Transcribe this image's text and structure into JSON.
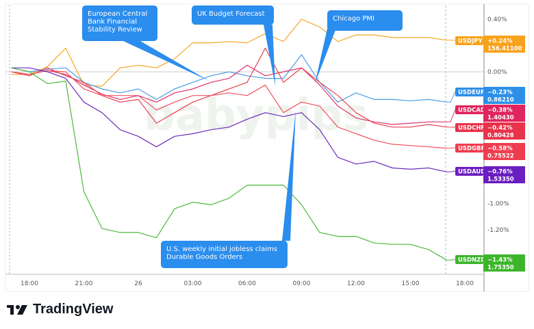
{
  "chart_data": {
    "type": "line",
    "x": [
      "17:00",
      "18:00",
      "19:00",
      "20:00",
      "21:00",
      "22:00",
      "23:00",
      "26",
      "01:00",
      "02:00",
      "03:00",
      "04:00",
      "05:00",
      "06:00",
      "07:00",
      "08:00",
      "09:00",
      "10:00",
      "11:00",
      "12:00",
      "13:00",
      "14:00",
      "15:00",
      "16:00",
      "17:00"
    ],
    "x_ticks": [
      "18:00",
      "21:00",
      "26",
      "03:00",
      "06:00",
      "09:00",
      "12:00",
      "15:00",
      "18:00"
    ],
    "y_ticks": [
      "0.40%",
      "0.00%",
      "-1.00%",
      "-1.20%"
    ],
    "y_unit": "%",
    "ylim": [
      -1.5,
      0.5
    ],
    "grid": false,
    "series": [
      {
        "name": "USDJPY",
        "color": "#f5a623",
        "tag_color": "#f7a21b",
        "change": "+0.24%",
        "price": "156.41100",
        "values": [
          -0.02,
          -0.02,
          0.04,
          0.18,
          -0.1,
          -0.11,
          0.03,
          0.05,
          0.03,
          0.1,
          0.22,
          0.22,
          0.23,
          0.22,
          0.29,
          0.23,
          0.4,
          0.34,
          0.23,
          0.28,
          0.28,
          0.26,
          0.26,
          0.26,
          0.24
        ]
      },
      {
        "name": "USDEUR",
        "color": "#4a9be8",
        "tag_color": "#2d8fe8",
        "change": "−0.23%",
        "price": "0.86210",
        "values": [
          0.03,
          0,
          0.02,
          0.03,
          -0.08,
          -0.13,
          -0.16,
          -0.13,
          -0.21,
          -0.13,
          -0.08,
          -0.03,
          0,
          -0.03,
          -0.05,
          -0.05,
          0.13,
          -0.08,
          -0.23,
          -0.16,
          -0.21,
          -0.21,
          -0.22,
          -0.21,
          -0.23
        ]
      },
      {
        "name": "USDCAD",
        "color": "#e0306a",
        "tag_color": "#e0245e",
        "change": "−0.38%",
        "price": "1.40430",
        "values": [
          0,
          -0.02,
          0.01,
          -0.02,
          -0.1,
          -0.17,
          -0.21,
          -0.18,
          -0.23,
          -0.16,
          -0.13,
          -0.08,
          -0.05,
          0.05,
          -0.03,
          0,
          0.03,
          -0.1,
          -0.26,
          -0.35,
          -0.38,
          -0.4,
          -0.39,
          -0.38,
          -0.38
        ]
      },
      {
        "name": "USDCHF",
        "color": "#e8404f",
        "tag_color": "#e8334a",
        "change": "−0.42%",
        "price": "0.80428",
        "values": [
          0,
          -0.03,
          0.03,
          -0.03,
          -0.08,
          -0.18,
          -0.23,
          -0.21,
          -0.39,
          -0.31,
          -0.23,
          -0.18,
          -0.13,
          -0.08,
          0.18,
          -0.08,
          0.03,
          -0.08,
          -0.18,
          -0.31,
          -0.39,
          -0.42,
          -0.42,
          -0.4,
          -0.42
        ]
      },
      {
        "name": "USDGBP",
        "color": "#f0505c",
        "tag_color": "#ef3d4f",
        "change": "−0.58%",
        "price": "0.75522",
        "values": [
          0,
          -0.02,
          0.01,
          0,
          -0.13,
          -0.18,
          -0.18,
          -0.18,
          -0.29,
          -0.23,
          -0.18,
          -0.18,
          -0.16,
          -0.18,
          -0.1,
          -0.31,
          -0.23,
          -0.26,
          -0.42,
          -0.47,
          -0.52,
          -0.55,
          -0.56,
          -0.57,
          -0.58
        ]
      },
      {
        "name": "USDAUD",
        "color": "#6a2cb8",
        "tag_color": "#6a1ec0",
        "change": "−0.76%",
        "price": "1.53350",
        "values": [
          0.03,
          0.03,
          0,
          -0.05,
          -0.23,
          -0.31,
          -0.44,
          -0.49,
          -0.57,
          -0.49,
          -0.47,
          -0.44,
          -0.42,
          -0.36,
          -0.31,
          -0.34,
          -0.31,
          -0.44,
          -0.65,
          -0.7,
          -0.68,
          -0.73,
          -0.74,
          -0.73,
          -0.76
        ]
      },
      {
        "name": "USDNZD",
        "color": "#4cb83a",
        "tag_color": "#3cb52a",
        "change": "−1.43%",
        "price": "1.75350",
        "values": [
          0.03,
          0,
          -0.09,
          -0.07,
          -0.91,
          -1.19,
          -1.22,
          -1.22,
          -1.26,
          -1.04,
          -0.99,
          -1.01,
          -0.96,
          -0.86,
          -0.86,
          -0.86,
          -1.01,
          -1.22,
          -1.25,
          -1.25,
          -1.3,
          -1.31,
          -1.31,
          -1.35,
          -1.43
        ]
      }
    ],
    "annotations": [
      {
        "lines": [
          "European Central",
          "Bank Financial",
          "Stability Review"
        ]
      },
      {
        "lines": [
          "UK Budget Forecast"
        ]
      },
      {
        "lines": [
          "Chicago PMI"
        ]
      },
      {
        "lines": [
          "U.S. weekly initial jobless claims",
          "Durable Goods Orders"
        ]
      }
    ]
  },
  "watermark": "babypips",
  "brand": {
    "name": "TradingView"
  },
  "colors": {
    "callout": "#2b8ded",
    "zero_line": "#cccccc"
  }
}
